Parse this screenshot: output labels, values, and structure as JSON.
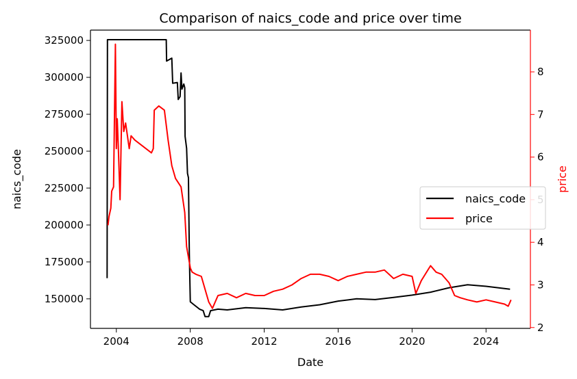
{
  "chart_data": {
    "type": "line",
    "title": "Comparison of naics_code and price over time",
    "xlabel": "Date",
    "ylabel_left": "naics_code",
    "ylabel_right": "price",
    "xlim": [
      2002.6,
      2026.4
    ],
    "ylim_left": [
      130000,
      332000
    ],
    "ylim_right": [
      1.98,
      8.98
    ],
    "x_ticks": [
      2004,
      2008,
      2012,
      2016,
      2020,
      2024
    ],
    "y_left_ticks": [
      150000,
      175000,
      200000,
      225000,
      250000,
      275000,
      300000,
      325000
    ],
    "y_right_ticks": [
      2,
      3,
      4,
      5,
      6,
      7,
      8
    ],
    "grid": false,
    "legend_position": "center-right",
    "colors": {
      "naics_code": "#000000",
      "price": "#ff0000",
      "right_axis": "#ff0000"
    },
    "series": [
      {
        "name": "naics_code",
        "axis": "left",
        "color": "#000000",
        "points": [
          [
            2003.5,
            164000
          ],
          [
            2003.52,
            325500
          ],
          [
            2006.7,
            325500
          ],
          [
            2006.72,
            311000
          ],
          [
            2007.0,
            313000
          ],
          [
            2007.05,
            296000
          ],
          [
            2007.3,
            296500
          ],
          [
            2007.35,
            285000
          ],
          [
            2007.45,
            287000
          ],
          [
            2007.5,
            303000
          ],
          [
            2007.55,
            292000
          ],
          [
            2007.65,
            295500
          ],
          [
            2007.7,
            293000
          ],
          [
            2007.72,
            260000
          ],
          [
            2007.8,
            252000
          ],
          [
            2007.85,
            235000
          ],
          [
            2007.9,
            232000
          ],
          [
            2007.95,
            180000
          ],
          [
            2008.0,
            148000
          ],
          [
            2008.2,
            146000
          ],
          [
            2008.5,
            143000
          ],
          [
            2008.7,
            142000
          ],
          [
            2008.8,
            138000
          ],
          [
            2009.0,
            138000
          ],
          [
            2009.1,
            142000
          ],
          [
            2009.5,
            143000
          ],
          [
            2010.0,
            142500
          ],
          [
            2011.0,
            144000
          ],
          [
            2012.0,
            143500
          ],
          [
            2013.0,
            142500
          ],
          [
            2014.0,
            144500
          ],
          [
            2015.0,
            146000
          ],
          [
            2016.0,
            148500
          ],
          [
            2017.0,
            150000
          ],
          [
            2018.0,
            149500
          ],
          [
            2019.0,
            151000
          ],
          [
            2020.0,
            152500
          ],
          [
            2021.0,
            154500
          ],
          [
            2022.0,
            157500
          ],
          [
            2023.0,
            159500
          ],
          [
            2024.0,
            158500
          ],
          [
            2025.3,
            156500
          ]
        ]
      },
      {
        "name": "price",
        "axis": "right",
        "color": "#ff0000",
        "points": [
          [
            2003.55,
            4.4
          ],
          [
            2003.6,
            4.6
          ],
          [
            2003.7,
            4.8
          ],
          [
            2003.75,
            5.2
          ],
          [
            2003.85,
            5.3
          ],
          [
            2003.95,
            8.65
          ],
          [
            2004.0,
            6.2
          ],
          [
            2004.05,
            6.9
          ],
          [
            2004.1,
            6.3
          ],
          [
            2004.2,
            5.0
          ],
          [
            2004.3,
            7.3
          ],
          [
            2004.4,
            6.6
          ],
          [
            2004.5,
            6.8
          ],
          [
            2004.7,
            6.2
          ],
          [
            2004.8,
            6.5
          ],
          [
            2005.0,
            6.4
          ],
          [
            2005.3,
            6.3
          ],
          [
            2005.6,
            6.2
          ],
          [
            2005.9,
            6.1
          ],
          [
            2006.0,
            6.2
          ],
          [
            2006.05,
            7.1
          ],
          [
            2006.3,
            7.2
          ],
          [
            2006.6,
            7.1
          ],
          [
            2006.8,
            6.4
          ],
          [
            2007.0,
            5.8
          ],
          [
            2007.2,
            5.5
          ],
          [
            2007.5,
            5.3
          ],
          [
            2007.7,
            4.7
          ],
          [
            2007.8,
            3.9
          ],
          [
            2008.0,
            3.4
          ],
          [
            2008.1,
            3.3
          ],
          [
            2008.3,
            3.25
          ],
          [
            2008.6,
            3.2
          ],
          [
            2008.8,
            2.9
          ],
          [
            2009.0,
            2.6
          ],
          [
            2009.2,
            2.45
          ],
          [
            2009.5,
            2.75
          ],
          [
            2010.0,
            2.8
          ],
          [
            2010.5,
            2.7
          ],
          [
            2011.0,
            2.8
          ],
          [
            2011.5,
            2.75
          ],
          [
            2012.0,
            2.75
          ],
          [
            2012.5,
            2.85
          ],
          [
            2013.0,
            2.9
          ],
          [
            2013.5,
            3.0
          ],
          [
            2014.0,
            3.15
          ],
          [
            2014.5,
            3.25
          ],
          [
            2015.0,
            3.25
          ],
          [
            2015.5,
            3.2
          ],
          [
            2016.0,
            3.1
          ],
          [
            2016.5,
            3.2
          ],
          [
            2017.0,
            3.25
          ],
          [
            2017.5,
            3.3
          ],
          [
            2018.0,
            3.3
          ],
          [
            2018.5,
            3.35
          ],
          [
            2019.0,
            3.15
          ],
          [
            2019.5,
            3.25
          ],
          [
            2020.0,
            3.2
          ],
          [
            2020.2,
            2.8
          ],
          [
            2020.5,
            3.1
          ],
          [
            2021.0,
            3.45
          ],
          [
            2021.3,
            3.3
          ],
          [
            2021.6,
            3.25
          ],
          [
            2022.0,
            3.05
          ],
          [
            2022.3,
            2.75
          ],
          [
            2022.6,
            2.7
          ],
          [
            2023.0,
            2.65
          ],
          [
            2023.5,
            2.6
          ],
          [
            2024.0,
            2.65
          ],
          [
            2024.5,
            2.6
          ],
          [
            2025.0,
            2.55
          ],
          [
            2025.2,
            2.5
          ],
          [
            2025.35,
            2.65
          ]
        ]
      }
    ]
  }
}
